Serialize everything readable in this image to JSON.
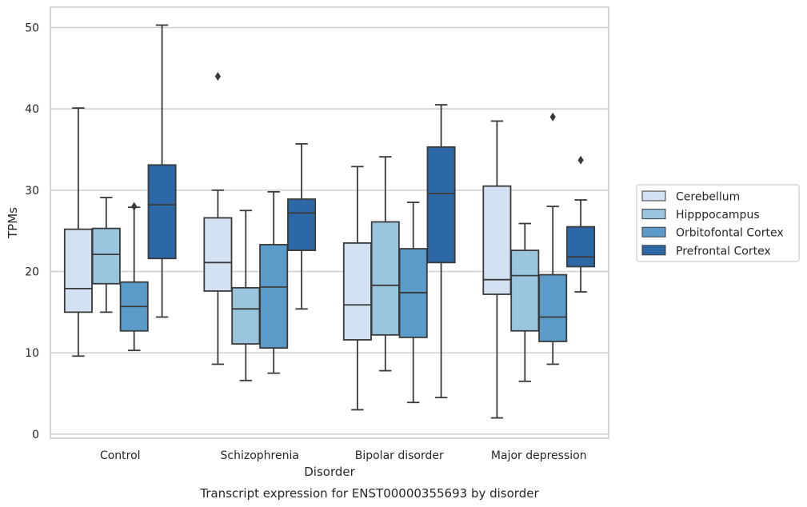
{
  "chart_data": {
    "type": "box",
    "xlabel": "Disorder",
    "ylabel": "TPMs",
    "caption": "Transcript expression for ENST00000355693 by disorder",
    "ylim": [
      -0.5,
      52.5
    ],
    "yticks": [
      0,
      10,
      20,
      30,
      40,
      50
    ],
    "grid": "horizontal",
    "legend_position": "right",
    "categories": [
      "Control",
      "Schizophrenia",
      "Bipolar disorder",
      "Major depression"
    ],
    "series": [
      {
        "name": "Cerebellum",
        "color": "#d3e2f2",
        "boxes": [
          {
            "whislo": 9.6,
            "q1": 15.0,
            "med": 17.9,
            "q3": 25.2,
            "whishi": 40.1,
            "fliers": []
          },
          {
            "whislo": 8.6,
            "q1": 17.6,
            "med": 21.1,
            "q3": 26.6,
            "whishi": 30.0,
            "fliers": [
              44.0
            ]
          },
          {
            "whislo": 3.0,
            "q1": 11.6,
            "med": 15.9,
            "q3": 23.5,
            "whishi": 32.9,
            "fliers": []
          },
          {
            "whislo": 2.0,
            "q1": 17.2,
            "med": 19.0,
            "q3": 30.5,
            "whishi": 38.5,
            "fliers": []
          }
        ]
      },
      {
        "name": "Hipppocampus",
        "color": "#9ac5df",
        "boxes": [
          {
            "whislo": 15.0,
            "q1": 18.5,
            "med": 22.1,
            "q3": 25.3,
            "whishi": 29.1,
            "fliers": []
          },
          {
            "whislo": 6.6,
            "q1": 11.1,
            "med": 15.4,
            "q3": 18.0,
            "whishi": 27.5,
            "fliers": []
          },
          {
            "whislo": 7.8,
            "q1": 12.2,
            "med": 18.3,
            "q3": 26.1,
            "whishi": 34.1,
            "fliers": []
          },
          {
            "whislo": 6.5,
            "q1": 12.7,
            "med": 19.5,
            "q3": 22.6,
            "whishi": 25.9,
            "fliers": []
          }
        ]
      },
      {
        "name": "Orbitofontal Cortex",
        "color": "#5b9bc9",
        "boxes": [
          {
            "whislo": 10.3,
            "q1": 12.7,
            "med": 15.7,
            "q3": 18.7,
            "whishi": 27.9,
            "fliers": [
              28.0
            ]
          },
          {
            "whislo": 7.5,
            "q1": 10.6,
            "med": 18.1,
            "q3": 23.3,
            "whishi": 29.8,
            "fliers": []
          },
          {
            "whislo": 3.9,
            "q1": 11.9,
            "med": 17.4,
            "q3": 22.8,
            "whishi": 28.5,
            "fliers": []
          },
          {
            "whislo": 8.6,
            "q1": 11.4,
            "med": 14.4,
            "q3": 19.6,
            "whishi": 28.0,
            "fliers": [
              39.0
            ]
          }
        ]
      },
      {
        "name": "Prefrontal Cortex",
        "color": "#2c67a6",
        "boxes": [
          {
            "whislo": 14.4,
            "q1": 21.6,
            "med": 28.2,
            "q3": 33.1,
            "whishi": 50.3,
            "fliers": []
          },
          {
            "whislo": 15.4,
            "q1": 22.6,
            "med": 27.2,
            "q3": 28.9,
            "whishi": 35.7,
            "fliers": []
          },
          {
            "whislo": 4.5,
            "q1": 21.1,
            "med": 29.6,
            "q3": 35.3,
            "whishi": 40.5,
            "fliers": []
          },
          {
            "whislo": 17.5,
            "q1": 20.6,
            "med": 21.8,
            "q3": 25.5,
            "whishi": 28.8,
            "fliers": [
              33.7
            ]
          }
        ]
      }
    ]
  }
}
